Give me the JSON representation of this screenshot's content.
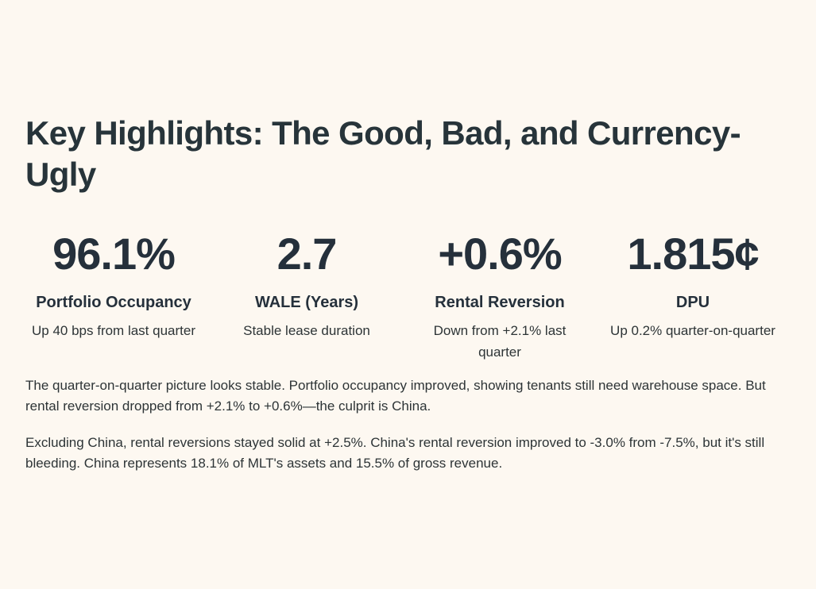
{
  "section": {
    "title": "Key Highlights: The Good, Bad, and Currency-Ugly"
  },
  "stats": [
    {
      "value": "96.1%",
      "label": "Portfolio Occupancy",
      "description": "Up 40 bps from last quarter"
    },
    {
      "value": "2.7",
      "label": "WALE (Years)",
      "description": "Stable lease duration"
    },
    {
      "value": "+0.6%",
      "label": "Rental Reversion",
      "description": "Down from +2.1% last quarter"
    },
    {
      "value": "1.815¢",
      "label": "DPU",
      "description": "Up 0.2% quarter-on-quarter"
    }
  ],
  "paragraphs": [
    "The quarter-on-quarter picture looks stable. Portfolio occupancy improved, showing tenants still need warehouse space. But rental reversion dropped from +2.1% to +0.6%—the culprit is China.",
    "Excluding China, rental reversions stayed solid at +2.5%. China's rental reversion improved to -3.0% from -7.5%, but it's still bleeding. China represents 18.1% of MLT's assets and 15.5% of gross revenue."
  ],
  "colors": {
    "background": "#fdf8f1",
    "heading": "#27343a",
    "text": "#2d3436"
  }
}
